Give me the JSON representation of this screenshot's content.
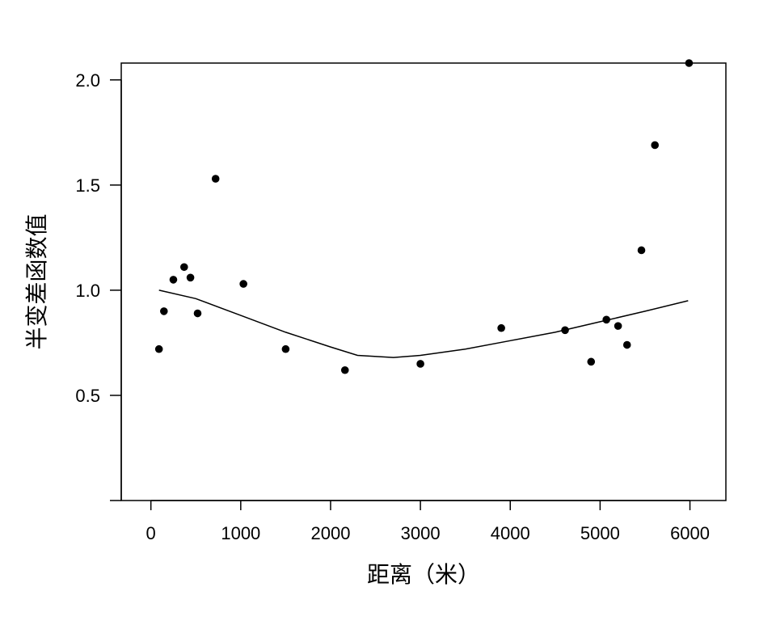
{
  "chart_data": {
    "type": "scatter",
    "title": "",
    "xlabel": "距离（米）",
    "ylabel": "半变差函数值",
    "xlim": [
      -330,
      6400
    ],
    "ylim": [
      0.0,
      2.08
    ],
    "x_ticks": [
      0,
      1000,
      2000,
      3000,
      4000,
      5000,
      6000
    ],
    "y_ticks": [
      0.5,
      1.0,
      1.5,
      2.0
    ],
    "grid": false,
    "legend": "none",
    "series": [
      {
        "type": "scatter",
        "points": [
          {
            "x": 90,
            "y": 0.72
          },
          {
            "x": 145,
            "y": 0.9
          },
          {
            "x": 250,
            "y": 1.05
          },
          {
            "x": 370,
            "y": 1.11
          },
          {
            "x": 440,
            "y": 1.06
          },
          {
            "x": 520,
            "y": 0.89
          },
          {
            "x": 720,
            "y": 1.53
          },
          {
            "x": 1030,
            "y": 1.03
          },
          {
            "x": 1500,
            "y": 0.72
          },
          {
            "x": 2160,
            "y": 0.62
          },
          {
            "x": 3000,
            "y": 0.65
          },
          {
            "x": 3900,
            "y": 0.82
          },
          {
            "x": 4610,
            "y": 0.81
          },
          {
            "x": 4900,
            "y": 0.66
          },
          {
            "x": 5070,
            "y": 0.86
          },
          {
            "x": 5200,
            "y": 0.83
          },
          {
            "x": 5300,
            "y": 0.74
          },
          {
            "x": 5460,
            "y": 1.19
          },
          {
            "x": 5610,
            "y": 1.69
          },
          {
            "x": 5990,
            "y": 2.08
          }
        ]
      },
      {
        "type": "line",
        "points": [
          {
            "x": 90,
            "y": 1.0
          },
          {
            "x": 500,
            "y": 0.96
          },
          {
            "x": 1000,
            "y": 0.88
          },
          {
            "x": 1500,
            "y": 0.8
          },
          {
            "x": 2000,
            "y": 0.73
          },
          {
            "x": 2300,
            "y": 0.69
          },
          {
            "x": 2700,
            "y": 0.68
          },
          {
            "x": 3000,
            "y": 0.69
          },
          {
            "x": 3500,
            "y": 0.72
          },
          {
            "x": 4000,
            "y": 0.76
          },
          {
            "x": 4500,
            "y": 0.8
          },
          {
            "x": 5000,
            "y": 0.85
          },
          {
            "x": 5500,
            "y": 0.9
          },
          {
            "x": 5980,
            "y": 0.95
          }
        ]
      }
    ]
  }
}
